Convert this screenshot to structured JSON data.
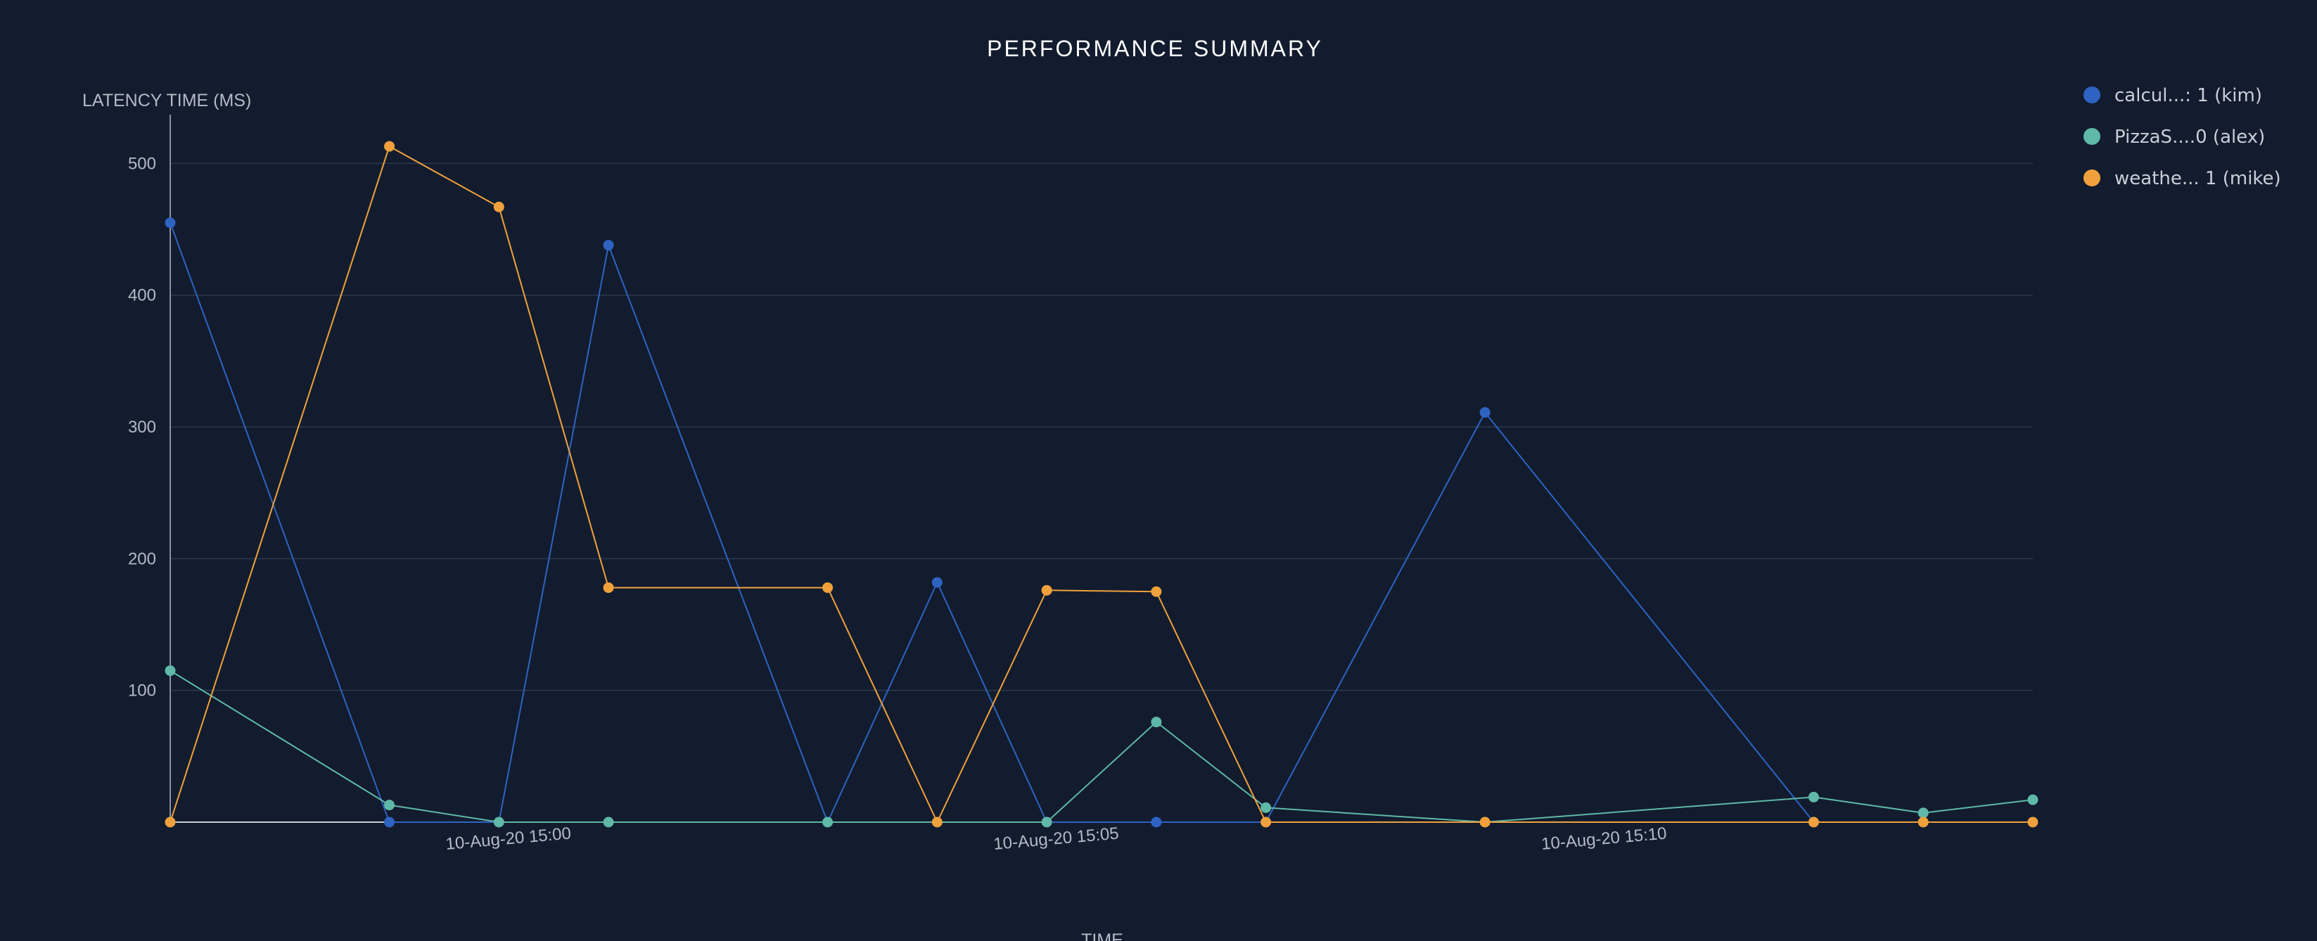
{
  "chart_data": {
    "type": "line",
    "title": "PERFORMANCE SUMMARY",
    "ylabel": "LATENCY TIME (MS)",
    "xlabel": "TIME",
    "ylim": [
      0,
      536
    ],
    "yticks": [
      100,
      200,
      300,
      400,
      500
    ],
    "x_ticks": [
      {
        "label": "10-Aug-20 15:00",
        "x": 3
      },
      {
        "label": "10-Aug-20 15:05",
        "x": 8
      },
      {
        "label": "10-Aug-20 15:10",
        "x": 13
      }
    ],
    "x_points": [
      0,
      2,
      3,
      4,
      6,
      7,
      8,
      9,
      10,
      12,
      15,
      16,
      17
    ],
    "xlim": [
      0,
      17
    ],
    "grid": true,
    "legend_position": "top-right",
    "series": [
      {
        "name": "calcul...: 1 (kim)",
        "color": "#2e63c2",
        "points": [
          [
            0,
            455
          ],
          [
            2,
            0
          ],
          [
            3,
            0
          ],
          [
            4,
            438
          ],
          [
            6,
            0
          ],
          [
            7,
            182
          ],
          [
            8,
            0
          ],
          [
            9,
            0
          ],
          [
            10,
            0
          ],
          [
            12,
            311
          ],
          [
            15,
            0
          ],
          [
            16,
            0
          ],
          [
            17,
            0
          ]
        ],
        "markers": [
          [
            0,
            455
          ],
          [
            2,
            0
          ],
          [
            4,
            438
          ],
          [
            7,
            182
          ],
          [
            9,
            0
          ],
          [
            12,
            311
          ]
        ]
      },
      {
        "name": "PizzaS....0 (alex)",
        "color": "#5fb8a8",
        "points": [
          [
            0,
            115
          ],
          [
            2,
            13
          ],
          [
            3,
            0
          ],
          [
            4,
            0
          ],
          [
            6,
            0
          ],
          [
            8,
            0
          ],
          [
            9,
            76
          ],
          [
            10,
            11
          ],
          [
            12,
            0
          ],
          [
            15,
            19
          ],
          [
            16,
            7
          ],
          [
            17,
            17
          ]
        ],
        "markers": [
          [
            0,
            115
          ],
          [
            2,
            13
          ],
          [
            3,
            0
          ],
          [
            4,
            0
          ],
          [
            6,
            0
          ],
          [
            8,
            0
          ],
          [
            9,
            76
          ],
          [
            10,
            11
          ],
          [
            15,
            19
          ],
          [
            16,
            7
          ],
          [
            17,
            17
          ]
        ]
      },
      {
        "name": "weathe... 1 (mike)",
        "color": "#f0a13c",
        "points": [
          [
            0,
            0
          ],
          [
            2,
            513
          ],
          [
            3,
            467
          ],
          [
            4,
            178
          ],
          [
            6,
            178
          ],
          [
            7,
            0
          ],
          [
            8,
            176
          ],
          [
            9,
            175
          ],
          [
            10,
            0
          ],
          [
            12,
            0
          ],
          [
            15,
            0
          ],
          [
            16,
            0
          ],
          [
            17,
            0
          ]
        ],
        "markers": [
          [
            0,
            0
          ],
          [
            2,
            513
          ],
          [
            3,
            467
          ],
          [
            4,
            178
          ],
          [
            6,
            178
          ],
          [
            7,
            0
          ],
          [
            8,
            176
          ],
          [
            9,
            175
          ],
          [
            10,
            0
          ],
          [
            12,
            0
          ],
          [
            15,
            0
          ],
          [
            16,
            0
          ],
          [
            17,
            0
          ]
        ]
      }
    ]
  }
}
